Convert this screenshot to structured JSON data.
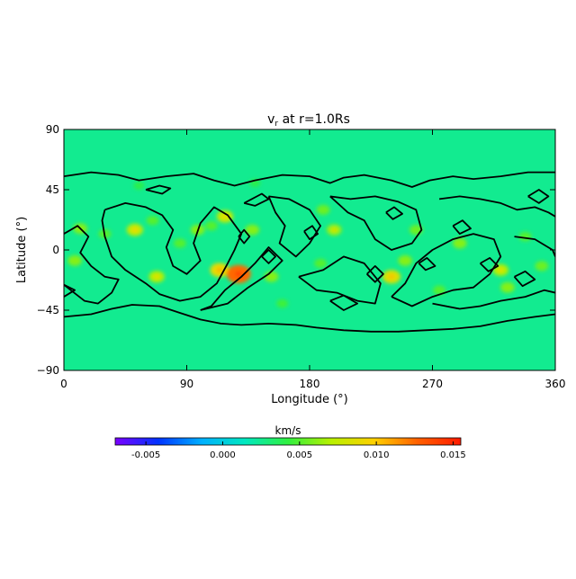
{
  "chart_data": {
    "type": "heatmap",
    "title_main": "v",
    "title_sub": "r",
    "title_rest": " at r=1.0Rs",
    "xlabel": "Longitude (°)",
    "ylabel": "Latitude (°)",
    "xlim": [
      0,
      360
    ],
    "ylim": [
      -90,
      90
    ],
    "xticks": [
      0,
      90,
      180,
      270,
      360
    ],
    "yticks": [
      90,
      45,
      0,
      -45,
      -90
    ],
    "background_value": 0.0025,
    "colorbar": {
      "label": "km/s",
      "range": [
        -0.007,
        0.0155
      ],
      "ticks": [
        "-0.005",
        "0.000",
        "0.005",
        "0.010",
        "0.015"
      ],
      "tick_values": [
        -0.005,
        0.0,
        0.005,
        0.01,
        0.015
      ],
      "colors": [
        "#7a00ff",
        "#0033ff",
        "#00b0ff",
        "#00e8c0",
        "#30f040",
        "#b8f000",
        "#ffd000",
        "#ff6000",
        "#ff1a00"
      ]
    },
    "hotspots": [
      {
        "lon": 12,
        "lat": 16,
        "value": 0.006
      },
      {
        "lon": 30,
        "lat": 12,
        "value": 0.005
      },
      {
        "lon": 8,
        "lat": -8,
        "value": 0.006
      },
      {
        "lon": 52,
        "lat": 15,
        "value": 0.0075
      },
      {
        "lon": 65,
        "lat": 22,
        "value": 0.005
      },
      {
        "lon": 68,
        "lat": -20,
        "value": 0.007
      },
      {
        "lon": 85,
        "lat": 5,
        "value": 0.005
      },
      {
        "lon": 98,
        "lat": 15,
        "value": 0.006
      },
      {
        "lon": 108,
        "lat": 18,
        "value": 0.005
      },
      {
        "lon": 114,
        "lat": -15,
        "value": 0.009
      },
      {
        "lon": 128,
        "lat": -18,
        "value": 0.0125
      },
      {
        "lon": 118,
        "lat": 25,
        "value": 0.0075
      },
      {
        "lon": 138,
        "lat": 15,
        "value": 0.006
      },
      {
        "lon": 152,
        "lat": -20,
        "value": 0.006
      },
      {
        "lon": 160,
        "lat": -40,
        "value": 0.0045
      },
      {
        "lon": 190,
        "lat": 30,
        "value": 0.0055
      },
      {
        "lon": 198,
        "lat": 15,
        "value": 0.0065
      },
      {
        "lon": 188,
        "lat": -10,
        "value": 0.005
      },
      {
        "lon": 240,
        "lat": -20,
        "value": 0.0085
      },
      {
        "lon": 250,
        "lat": -8,
        "value": 0.006
      },
      {
        "lon": 258,
        "lat": 15,
        "value": 0.0055
      },
      {
        "lon": 275,
        "lat": -30,
        "value": 0.005
      },
      {
        "lon": 290,
        "lat": 5,
        "value": 0.006
      },
      {
        "lon": 320,
        "lat": -15,
        "value": 0.007
      },
      {
        "lon": 325,
        "lat": -28,
        "value": 0.006
      },
      {
        "lon": 338,
        "lat": 10,
        "value": 0.005
      },
      {
        "lon": 350,
        "lat": -12,
        "value": 0.0055
      },
      {
        "lon": 140,
        "lat": 50,
        "value": 0.004
      },
      {
        "lon": 55,
        "lat": 48,
        "value": 0.004
      }
    ],
    "contours": [
      [
        [
          0,
          55
        ],
        [
          20,
          58
        ],
        [
          40,
          56
        ],
        [
          55,
          52
        ],
        [
          75,
          55
        ],
        [
          95,
          57
        ],
        [
          110,
          52
        ],
        [
          125,
          48
        ],
        [
          140,
          52
        ],
        [
          160,
          56
        ],
        [
          180,
          55
        ],
        [
          195,
          50
        ],
        [
          205,
          54
        ],
        [
          220,
          56
        ],
        [
          240,
          52
        ],
        [
          255,
          47
        ],
        [
          268,
          52
        ],
        [
          285,
          55
        ],
        [
          300,
          53
        ],
        [
          320,
          55
        ],
        [
          340,
          58
        ],
        [
          360,
          58
        ]
      ],
      [
        [
          0,
          -50
        ],
        [
          20,
          -48
        ],
        [
          35,
          -44
        ],
        [
          50,
          -41
        ],
        [
          70,
          -42
        ],
        [
          85,
          -47
        ],
        [
          100,
          -52
        ],
        [
          115,
          -55
        ],
        [
          130,
          -56
        ],
        [
          150,
          -55
        ],
        [
          170,
          -56
        ],
        [
          185,
          -58
        ],
        [
          205,
          -60
        ],
        [
          225,
          -61
        ],
        [
          245,
          -61
        ],
        [
          265,
          -60
        ],
        [
          285,
          -59
        ],
        [
          305,
          -57
        ],
        [
          325,
          -53
        ],
        [
          345,
          -50
        ],
        [
          360,
          -48
        ]
      ],
      [
        [
          0,
          12
        ],
        [
          10,
          18
        ],
        [
          18,
          10
        ],
        [
          12,
          -2
        ],
        [
          20,
          -12
        ],
        [
          30,
          -20
        ],
        [
          40,
          -22
        ],
        [
          35,
          -32
        ],
        [
          25,
          -40
        ],
        [
          15,
          -38
        ],
        [
          5,
          -30
        ],
        [
          0,
          -26
        ]
      ],
      [
        [
          30,
          30
        ],
        [
          45,
          35
        ],
        [
          60,
          32
        ],
        [
          72,
          26
        ],
        [
          80,
          15
        ],
        [
          75,
          2
        ],
        [
          80,
          -12
        ],
        [
          90,
          -18
        ],
        [
          100,
          -8
        ],
        [
          95,
          5
        ],
        [
          100,
          20
        ],
        [
          110,
          32
        ],
        [
          120,
          26
        ],
        [
          130,
          12
        ],
        [
          125,
          0
        ],
        [
          120,
          -10
        ],
        [
          112,
          -25
        ],
        [
          100,
          -35
        ],
        [
          85,
          -38
        ],
        [
          70,
          -33
        ],
        [
          60,
          -25
        ],
        [
          45,
          -15
        ],
        [
          35,
          -5
        ],
        [
          30,
          10
        ],
        [
          28,
          22
        ],
        [
          30,
          30
        ]
      ],
      [
        [
          100,
          -45
        ],
        [
          120,
          -40
        ],
        [
          135,
          -28
        ],
        [
          150,
          -18
        ],
        [
          160,
          -8
        ],
        [
          150,
          2
        ],
        [
          140,
          -10
        ],
        [
          130,
          -20
        ],
        [
          118,
          -30
        ],
        [
          108,
          -42
        ],
        [
          100,
          -45
        ]
      ],
      [
        [
          150,
          40
        ],
        [
          165,
          38
        ],
        [
          180,
          30
        ],
        [
          188,
          18
        ],
        [
          180,
          5
        ],
        [
          170,
          -5
        ],
        [
          158,
          5
        ],
        [
          162,
          18
        ],
        [
          155,
          28
        ],
        [
          150,
          40
        ]
      ],
      [
        [
          172,
          -20
        ],
        [
          190,
          -15
        ],
        [
          205,
          -5
        ],
        [
          220,
          -10
        ],
        [
          232,
          -25
        ],
        [
          228,
          -40
        ],
        [
          215,
          -38
        ],
        [
          200,
          -32
        ],
        [
          185,
          -30
        ],
        [
          172,
          -20
        ]
      ],
      [
        [
          195,
          40
        ],
        [
          210,
          38
        ],
        [
          228,
          40
        ],
        [
          245,
          36
        ],
        [
          258,
          30
        ],
        [
          262,
          15
        ],
        [
          255,
          5
        ],
        [
          240,
          0
        ],
        [
          228,
          8
        ],
        [
          220,
          22
        ],
        [
          208,
          28
        ],
        [
          195,
          40
        ]
      ],
      [
        [
          240,
          -35
        ],
        [
          250,
          -25
        ],
        [
          258,
          -10
        ],
        [
          270,
          0
        ],
        [
          285,
          8
        ],
        [
          300,
          12
        ],
        [
          315,
          8
        ],
        [
          320,
          -5
        ],
        [
          312,
          -18
        ],
        [
          300,
          -28
        ],
        [
          285,
          -30
        ],
        [
          270,
          -35
        ],
        [
          255,
          -42
        ],
        [
          240,
          -35
        ]
      ],
      [
        [
          275,
          38
        ],
        [
          290,
          40
        ],
        [
          305,
          38
        ],
        [
          320,
          35
        ],
        [
          332,
          30
        ],
        [
          345,
          32
        ],
        [
          355,
          28
        ],
        [
          360,
          25
        ]
      ],
      [
        [
          330,
          10
        ],
        [
          345,
          8
        ],
        [
          358,
          0
        ],
        [
          360,
          -5
        ]
      ],
      [
        [
          270,
          -40
        ],
        [
          290,
          -44
        ],
        [
          305,
          -42
        ],
        [
          320,
          -38
        ],
        [
          338,
          -35
        ],
        [
          352,
          -30
        ],
        [
          360,
          -32
        ]
      ],
      [
        [
          0,
          -35
        ],
        [
          8,
          -30
        ],
        [
          0,
          -26
        ]
      ],
      [
        [
          60,
          45
        ],
        [
          70,
          48
        ],
        [
          78,
          46
        ],
        [
          72,
          42
        ],
        [
          60,
          45
        ]
      ],
      [
        [
          132,
          35
        ],
        [
          145,
          42
        ],
        [
          150,
          38
        ],
        [
          140,
          33
        ],
        [
          132,
          35
        ]
      ],
      [
        [
          128,
          10
        ],
        [
          132,
          15
        ],
        [
          136,
          10
        ],
        [
          132,
          5
        ],
        [
          128,
          10
        ]
      ],
      [
        [
          176,
          14
        ],
        [
          182,
          18
        ],
        [
          186,
          12
        ],
        [
          180,
          8
        ],
        [
          176,
          14
        ]
      ],
      [
        [
          236,
          28
        ],
        [
          242,
          32
        ],
        [
          248,
          27
        ],
        [
          241,
          23
        ],
        [
          236,
          28
        ]
      ],
      [
        [
          285,
          18
        ],
        [
          292,
          22
        ],
        [
          298,
          16
        ],
        [
          290,
          12
        ],
        [
          285,
          18
        ]
      ],
      [
        [
          330,
          -20
        ],
        [
          338,
          -16
        ],
        [
          345,
          -22
        ],
        [
          336,
          -27
        ],
        [
          330,
          -20
        ]
      ],
      [
        [
          222,
          -18
        ],
        [
          228,
          -12
        ],
        [
          234,
          -18
        ],
        [
          228,
          -24
        ],
        [
          222,
          -18
        ]
      ],
      [
        [
          305,
          -10
        ],
        [
          312,
          -6
        ],
        [
          318,
          -12
        ],
        [
          311,
          -16
        ],
        [
          305,
          -10
        ]
      ],
      [
        [
          145,
          -5
        ],
        [
          150,
          0
        ],
        [
          155,
          -5
        ],
        [
          150,
          -10
        ],
        [
          145,
          -5
        ]
      ],
      [
        [
          260,
          -10
        ],
        [
          266,
          -6
        ],
        [
          272,
          -12
        ],
        [
          265,
          -15
        ],
        [
          260,
          -10
        ]
      ],
      [
        [
          195,
          -38
        ],
        [
          205,
          -34
        ],
        [
          215,
          -40
        ],
        [
          205,
          -45
        ],
        [
          195,
          -38
        ]
      ],
      [
        [
          340,
          40
        ],
        [
          348,
          45
        ],
        [
          355,
          40
        ],
        [
          348,
          35
        ],
        [
          340,
          40
        ]
      ]
    ]
  }
}
